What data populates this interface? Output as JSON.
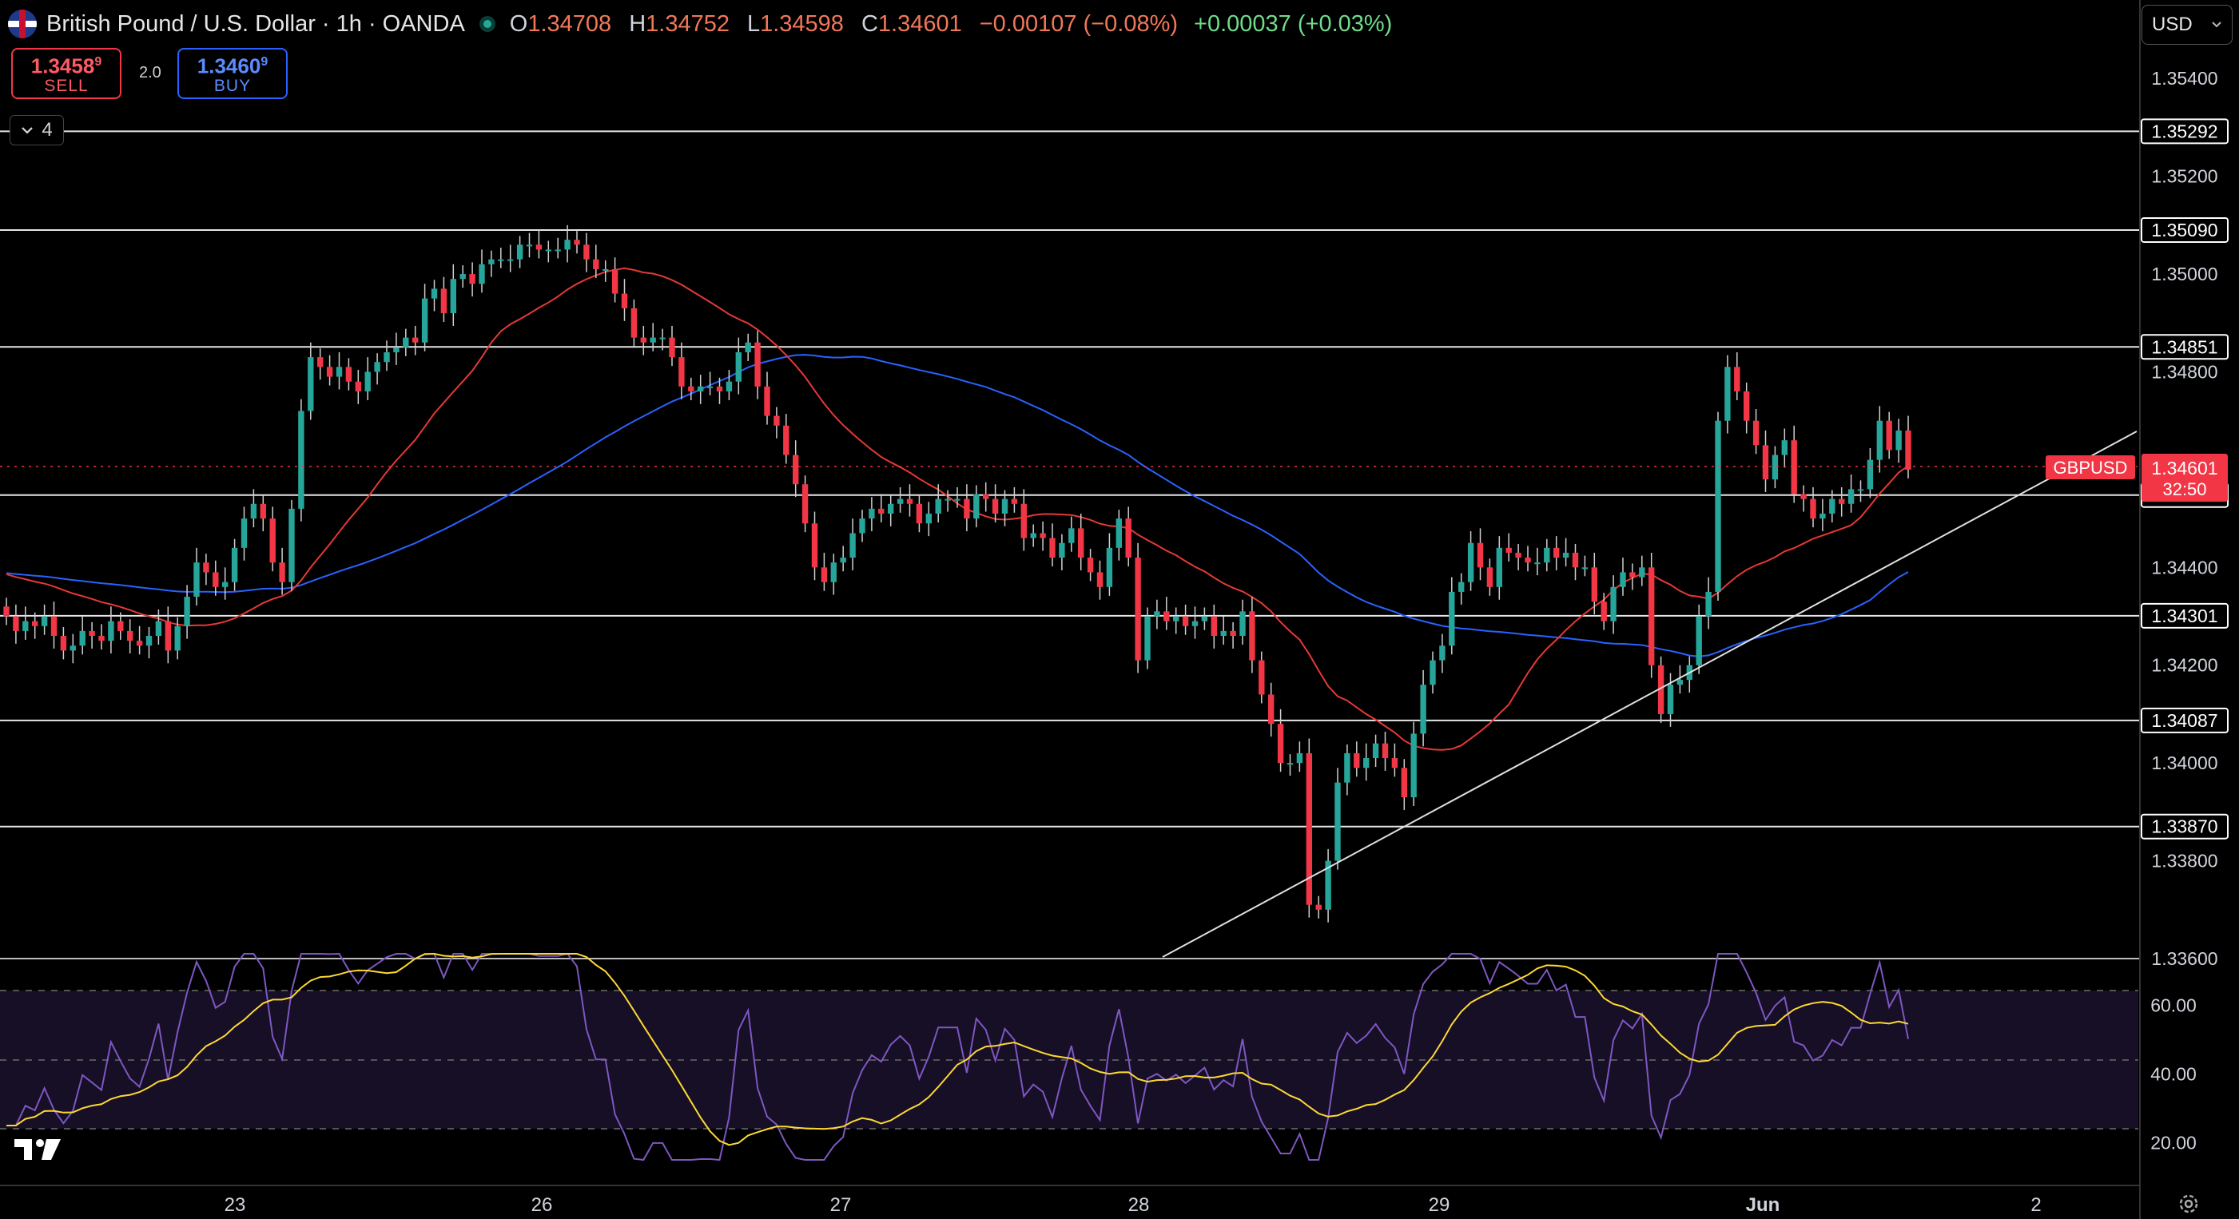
{
  "header": {
    "title": "British Pound / U.S. Dollar · 1h · OANDA",
    "ohlc": {
      "O": "1.34708",
      "H": "1.34752",
      "L": "1.34598",
      "C": "1.34601"
    },
    "change": "−0.00107 (−0.08%)",
    "change2": "+0.00037 (+0.03%)"
  },
  "trade": {
    "sell_price": "1.3458",
    "sell_sup": "9",
    "sell_label": "SELL",
    "spread": "2.0",
    "buy_price": "1.3460",
    "buy_sup": "9",
    "buy_label": "BUY"
  },
  "indicators_count": "4",
  "currency": "USD",
  "symbol_tag": "GBPUSD",
  "last_price": "1.34601",
  "countdown": "32:50",
  "colors": {
    "up": "#26a69a",
    "down": "#f23645",
    "ma_red": "#e53935",
    "ma_blue": "#2962ff",
    "rsi": "#7e57c2",
    "rsi_ma": "#fdd835"
  },
  "chart_data": {
    "type": "candlestick",
    "symbol": "GBPUSD",
    "timeframe": "1h",
    "ylim": [
      1.336,
      1.355
    ],
    "yticks": [
      "1.35400",
      "1.35200",
      "1.35000",
      "1.34800",
      "1.34400",
      "1.34200",
      "1.34000",
      "1.33800",
      "1.33600"
    ],
    "xticks": [
      "23",
      "26",
      "27",
      "28",
      "29",
      "Jun",
      "2"
    ],
    "horizontal_levels": [
      "1.35292",
      "1.35090",
      "1.34851",
      "1.34548",
      "1.34301",
      "1.34087",
      "1.33870"
    ],
    "trendline": [
      [
        0.0,
        1.336
      ],
      [
        1.0,
        1.3466
      ]
    ],
    "closes": [
      1.343,
      1.3427,
      1.3429,
      1.3428,
      1.343,
      1.3426,
      1.3423,
      1.3424,
      1.3427,
      1.3426,
      1.3425,
      1.3429,
      1.3427,
      1.3425,
      1.3424,
      1.3426,
      1.3429,
      1.3423,
      1.3428,
      1.3434,
      1.3441,
      1.3439,
      1.3436,
      1.3437,
      1.3444,
      1.345,
      1.3453,
      1.345,
      1.3441,
      1.3437,
      1.3452,
      1.3472,
      1.3483,
      1.3481,
      1.3479,
      1.3481,
      1.3478,
      1.3476,
      1.348,
      1.3482,
      1.3484,
      1.3485,
      1.3487,
      1.3486,
      1.3495,
      1.3497,
      1.3492,
      1.3499,
      1.35,
      1.3498,
      1.3502,
      1.3503,
      1.3503,
      1.3503,
      1.3506,
      1.3506,
      1.3505,
      1.3505,
      1.3505,
      1.3507,
      1.3506,
      1.3503,
      1.3501,
      1.3501,
      1.3496,
      1.3493,
      1.3487,
      1.3486,
      1.3487,
      1.3487,
      1.3483,
      1.3477,
      1.3476,
      1.3477,
      1.3477,
      1.3476,
      1.3478,
      1.3484,
      1.3486,
      1.3477,
      1.3471,
      1.3469,
      1.3463,
      1.3457,
      1.3449,
      1.344,
      1.3437,
      1.3441,
      1.3442,
      1.3447,
      1.345,
      1.3452,
      1.3451,
      1.3453,
      1.3454,
      1.3453,
      1.3449,
      1.3451,
      1.3454,
      1.3454,
      1.3454,
      1.345,
      1.3455,
      1.3454,
      1.3451,
      1.3454,
      1.3453,
      1.3446,
      1.3447,
      1.3446,
      1.3442,
      1.3445,
      1.3448,
      1.3442,
      1.3439,
      1.3436,
      1.3444,
      1.345,
      1.3442,
      1.3421,
      1.343,
      1.3431,
      1.3429,
      1.343,
      1.3428,
      1.3429,
      1.343,
      1.3426,
      1.3427,
      1.3426,
      1.3431,
      1.3421,
      1.3414,
      1.3408,
      1.34,
      1.34,
      1.3402,
      1.3371,
      1.337,
      1.338,
      1.3396,
      1.3402,
      1.3399,
      1.3401,
      1.3404,
      1.3401,
      1.3399,
      1.3393,
      1.3406,
      1.3416,
      1.3421,
      1.3424,
      1.3435,
      1.3437,
      1.3445,
      1.344,
      1.3436,
      1.3444,
      1.3443,
      1.3442,
      1.3441,
      1.3441,
      1.3444,
      1.3442,
      1.3443,
      1.344,
      1.344,
      1.3433,
      1.3429,
      1.3436,
      1.3439,
      1.3438,
      1.344,
      1.342,
      1.341,
      1.3416,
      1.3417,
      1.342,
      1.343,
      1.3435,
      1.347,
      1.3481,
      1.3476,
      1.347,
      1.3465,
      1.3458,
      1.3463,
      1.3466,
      1.3455,
      1.3454,
      1.345,
      1.3451,
      1.3454,
      1.3453,
      1.3456,
      1.3456,
      1.3462,
      1.347,
      1.3464,
      1.3468,
      1.346
    ],
    "rsi": {
      "ylim": [
        15,
        75
      ],
      "yticks": [
        "60.00",
        "40.00",
        "20.00"
      ],
      "bands": [
        70,
        50,
        30
      ]
    }
  }
}
